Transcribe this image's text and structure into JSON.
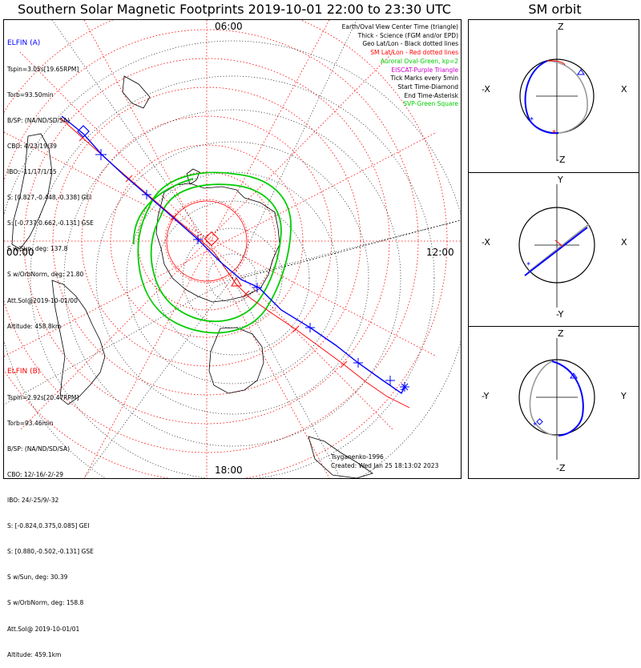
{
  "title": "Southern Solar Magnetic Footprints 2019-10-01 22:00 to 23:30 UTC",
  "orbit_title": "SM orbit",
  "hour_ticks": {
    "top": "06:00",
    "left": "00:00",
    "right": "12:00",
    "bottom": "18:00"
  },
  "elfin_a": {
    "name": "ELFIN (A)",
    "lines": [
      "Tspin=3.05s[19.65RPM]",
      "Torb=93.50min",
      "B/SP: (NA/ND/SD/SA)",
      "CBO: 4/23/19/39",
      "IBO: -11/17/1/15",
      "S: [0.827,-0.448,-0.338] GEI",
      "S: [-0.737,0.662,-0.131] GSE",
      "S w/Sun, deg: 137.8",
      "S w/OrbNorm, deg: 21.80",
      "Att.Sol@2019-10-01/00",
      "Altitude: 458.8km"
    ],
    "color": "#0000ff"
  },
  "elfin_b": {
    "name": "ELFIN (B)",
    "lines": [
      "Tspin=2.92s[20.47RPM]",
      "Torb=93.46min",
      "B/SP: (NA/ND/SD/SA)",
      "CBO: 12/-16/-2/-29",
      "IBO: 24/-25/9/-32",
      "S: [-0.824,0.375,0.085] GEI",
      "S: [0.880,-0.502,-0.131] GSE",
      "S w/Sun, deg: 30.39",
      "S w/OrbNorm, deg: 158.8",
      "Att.Sol@ 2019-10-01/01",
      "Altitude: 459.1km"
    ],
    "color": "#ff0000"
  },
  "legend": [
    {
      "text": "Earth/Oval View Center Time (triangle)",
      "color": "#000000"
    },
    {
      "text": "Thick - Science (FGM and/or EPD)",
      "color": "#000000"
    },
    {
      "text": "Geo Lat/Lon - Black dotted lines",
      "color": "#000000"
    },
    {
      "text": "SM Lat/Lon - Red dotted lines",
      "color": "#ff0000"
    },
    {
      "text": "Auroral Oval-Green, kp=2",
      "color": "#00cc00"
    },
    {
      "text": "EISCAT-Purple Triangle",
      "color": "#cc00cc"
    },
    {
      "text": "Tick Marks every 5min",
      "color": "#000000"
    },
    {
      "text": "Start Time-Diamond",
      "color": "#000000"
    },
    {
      "text": "End Time-Asterisk",
      "color": "#000000"
    },
    {
      "text": "SVP-Green Square",
      "color": "#00cc00"
    }
  ],
  "model": "Tsyganenko-1996",
  "created": "Created: Wed Jan 25 18:13:02 2023",
  "panels": [
    {
      "top": "Z",
      "bottom": "-Z",
      "left": "-X",
      "right": "X"
    },
    {
      "top": "Y",
      "bottom": "-Y",
      "left": "-X",
      "right": "X"
    },
    {
      "top": "Z",
      "bottom": "-Z",
      "left": "-Y",
      "right": "Y"
    }
  ],
  "colors": {
    "sm_grid": "#ff0000",
    "geo_grid": "#000000",
    "oval": "#00cc00",
    "elfin_a": "#0000ff",
    "elfin_b": "#ff0000"
  }
}
